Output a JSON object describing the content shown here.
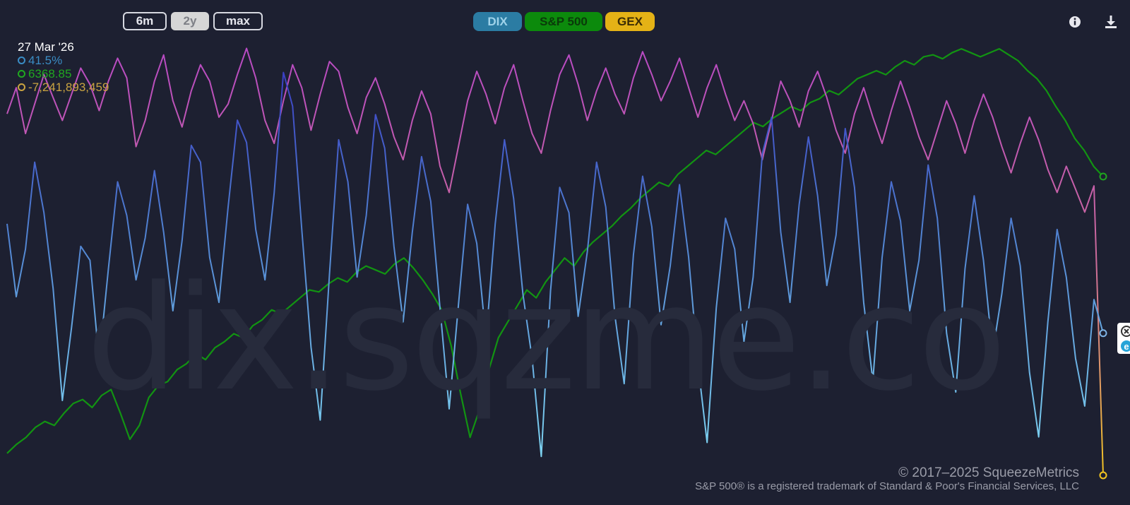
{
  "watermark": "dix.sqzme.co",
  "range_buttons": [
    {
      "label": "6m",
      "active": false
    },
    {
      "label": "2y",
      "active": true
    },
    {
      "label": "max",
      "active": false
    }
  ],
  "series_buttons": [
    {
      "label": "DIX",
      "color": "#2b7ca3",
      "text_color": "#9fd3ea"
    },
    {
      "label": "S&P 500",
      "color": "#0c8a0c",
      "text_color": "#0a3a0a"
    },
    {
      "label": "GEX",
      "color": "#e4b216",
      "text_color": "#3b2c04"
    }
  ],
  "icons": {
    "info": "info-icon",
    "download": "download-icon"
  },
  "tooltip": {
    "date": "27 Mar '26",
    "dix": "41.5%",
    "spx": "6368.85",
    "gex": "-7,241,893,459",
    "dix_color": "#3a8cc4",
    "spx_color": "#20a820",
    "gex_color": "#c9a341"
  },
  "credits": {
    "copyright": "© 2017–2025 SqueezeMetrics",
    "trademark": "S&P 500® is a registered trademark of Standard & Poor's Financial Services, LLC"
  },
  "chart_data": {
    "type": "line",
    "range": "2y",
    "x_end": "27 Mar '26",
    "gridlines": false,
    "legend": "top-center toggle buttons",
    "series": [
      {
        "name": "DIX",
        "color": "#4f7fd0",
        "unit": "%",
        "last": 41.5,
        "values": [
          45.4,
          42.8,
          44.5,
          47.6,
          45.8,
          43.1,
          39.1,
          41.7,
          44.6,
          44.1,
          40.5,
          43.8,
          46.9,
          45.7,
          43.4,
          44.9,
          47.3,
          45.1,
          42.3,
          44.8,
          48.2,
          47.6,
          44.2,
          42.6,
          46.0,
          49.1,
          48.3,
          45.2,
          43.4,
          46.5,
          50.8,
          49.6,
          45.2,
          41.0,
          38.4,
          43.6,
          48.4,
          46.9,
          43.5,
          45.7,
          49.3,
          48.1,
          44.6,
          41.9,
          45.1,
          47.8,
          46.2,
          42.4,
          38.8,
          42.5,
          46.1,
          44.7,
          41.3,
          45.4,
          48.4,
          46.3,
          42.9,
          40.6,
          37.1,
          43.0,
          46.7,
          45.8,
          42.1,
          44.4,
          47.6,
          46.0,
          42.1,
          39.7,
          44.3,
          47.1,
          45.3,
          41.8,
          43.9,
          46.8,
          44.2,
          40.4,
          37.6,
          42.4,
          45.6,
          44.5,
          41.2,
          43.5,
          47.9,
          49.2,
          45.1,
          42.6,
          46.1,
          48.5,
          46.4,
          43.2,
          45.0,
          48.8,
          46.7,
          42.6,
          39.8,
          44.2,
          46.9,
          45.5,
          42.3,
          44.1,
          47.5,
          45.6,
          41.5,
          39.4,
          43.8,
          46.4,
          44.1,
          40.8,
          42.9,
          45.6,
          43.9,
          40.1,
          37.8,
          41.9,
          45.2,
          43.5,
          40.6,
          38.9,
          42.7,
          41.5
        ]
      },
      {
        "name": "S&P 500",
        "color": "#159a15",
        "unit": "index",
        "last": 6368.85,
        "values": [
          4980,
          5025,
          5060,
          5110,
          5140,
          5120,
          5180,
          5230,
          5250,
          5210,
          5270,
          5300,
          5180,
          5050,
          5120,
          5260,
          5320,
          5340,
          5400,
          5430,
          5480,
          5450,
          5510,
          5540,
          5580,
          5560,
          5620,
          5650,
          5700,
          5680,
          5720,
          5760,
          5800,
          5790,
          5830,
          5860,
          5840,
          5890,
          5920,
          5900,
          5880,
          5930,
          5960,
          5910,
          5850,
          5780,
          5700,
          5520,
          5280,
          5060,
          5200,
          5400,
          5560,
          5640,
          5720,
          5800,
          5760,
          5840,
          5900,
          5960,
          5920,
          5990,
          6040,
          6080,
          6120,
          6170,
          6210,
          6260,
          6300,
          6340,
          6320,
          6380,
          6420,
          6460,
          6500,
          6480,
          6520,
          6560,
          6600,
          6640,
          6620,
          6660,
          6690,
          6720,
          6700,
          6740,
          6760,
          6800,
          6780,
          6820,
          6860,
          6880,
          6900,
          6880,
          6920,
          6950,
          6930,
          6970,
          6980,
          6960,
          6990,
          7010,
          6990,
          6970,
          6990,
          7010,
          6980,
          6950,
          6900,
          6860,
          6800,
          6720,
          6650,
          6560,
          6500,
          6420,
          6368.85
        ]
      },
      {
        "name": "GEX",
        "color": "#c65fb0",
        "unit": "$",
        "last": -7241893459,
        "values": [
          3.8,
          4.6,
          3.2,
          4.1,
          5.0,
          4.3,
          3.6,
          4.4,
          5.2,
          4.7,
          3.9,
          4.8,
          5.5,
          4.9,
          2.8,
          3.6,
          4.8,
          5.6,
          4.2,
          3.4,
          4.5,
          5.3,
          4.8,
          3.7,
          4.1,
          5.0,
          5.8,
          4.9,
          3.6,
          2.9,
          4.2,
          5.3,
          4.6,
          3.3,
          4.4,
          5.4,
          5.1,
          4.0,
          3.2,
          4.3,
          4.9,
          4.1,
          3.1,
          2.4,
          3.6,
          4.5,
          3.8,
          2.2,
          1.4,
          2.8,
          4.2,
          5.1,
          4.4,
          3.5,
          4.6,
          5.3,
          4.2,
          3.2,
          2.6,
          3.9,
          5.0,
          5.6,
          4.7,
          3.6,
          4.5,
          5.2,
          4.4,
          3.8,
          4.9,
          5.7,
          5.0,
          4.2,
          4.8,
          5.5,
          4.6,
          3.7,
          4.6,
          5.3,
          4.4,
          3.6,
          4.2,
          3.5,
          2.4,
          3.6,
          4.8,
          4.2,
          3.4,
          4.5,
          5.1,
          4.3,
          3.3,
          2.6,
          3.8,
          4.6,
          3.7,
          2.9,
          3.9,
          4.8,
          4.0,
          3.1,
          2.4,
          3.3,
          4.2,
          3.5,
          2.6,
          3.6,
          4.4,
          3.7,
          2.8,
          2.0,
          2.9,
          3.7,
          3.0,
          2.1,
          1.4,
          2.2,
          1.5,
          0.8,
          1.6,
          -7.24
        ]
      }
    ]
  }
}
